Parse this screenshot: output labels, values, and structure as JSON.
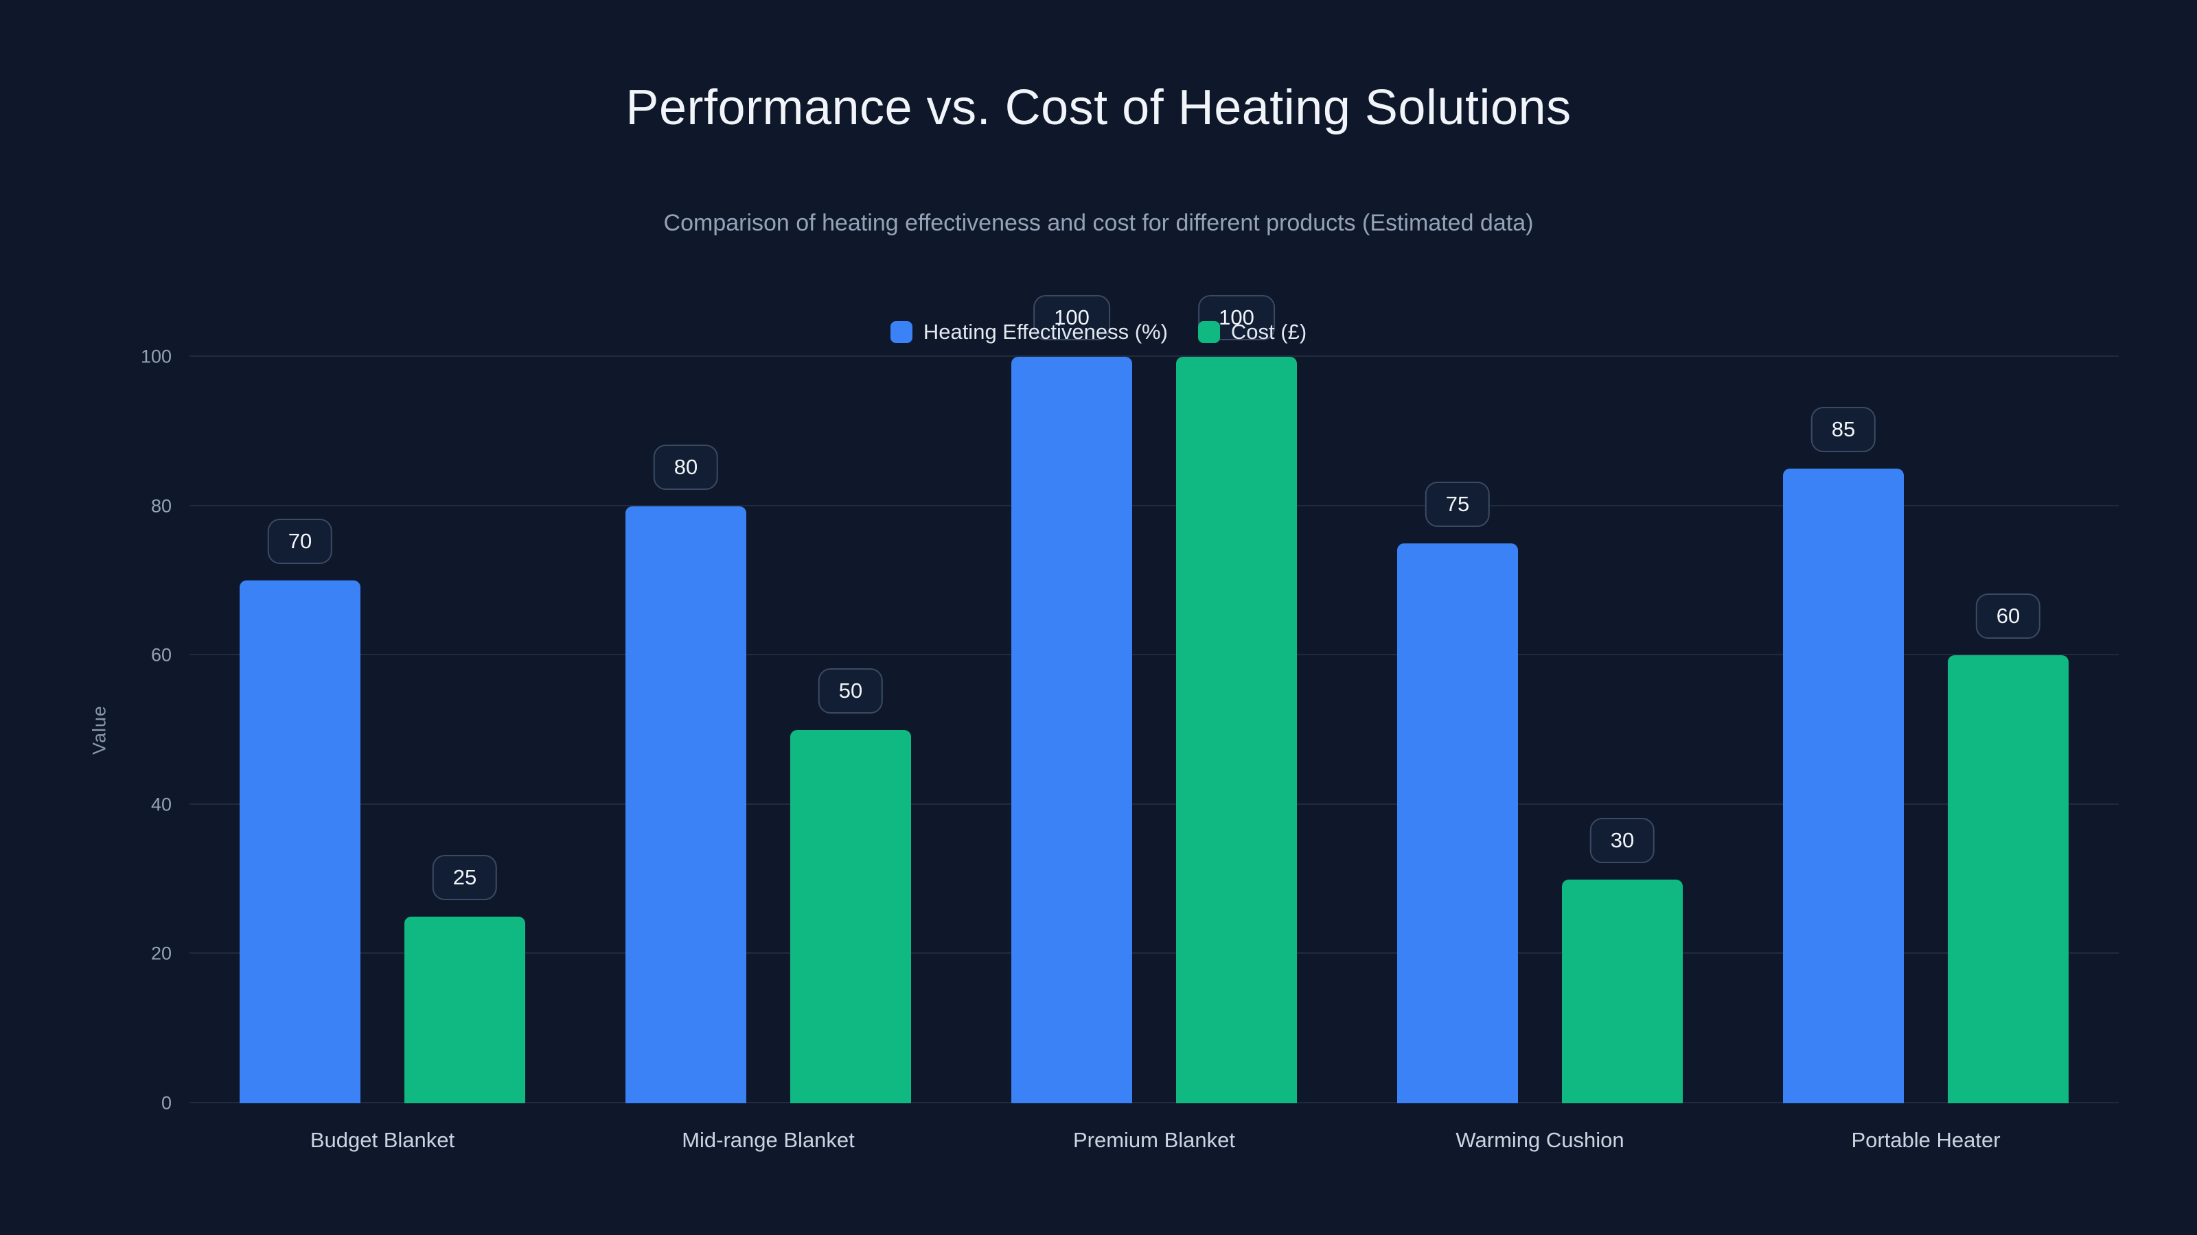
{
  "page": {
    "background": "#0f172a"
  },
  "chart_data": {
    "type": "bar",
    "title": "Performance vs. Cost of Heating Solutions",
    "subtitle": "Comparison of heating effectiveness and cost for different products (Estimated data)",
    "categories": [
      "Budget Blanket",
      "Mid-range Blanket",
      "Premium Blanket",
      "Warming Cushion",
      "Portable Heater"
    ],
    "series": [
      {
        "name": "Heating Effectiveness (%)",
        "color": "#3b82f6",
        "values": [
          70,
          80,
          100,
          75,
          85
        ]
      },
      {
        "name": "Cost (£)",
        "color": "#10b981",
        "values": [
          25,
          50,
          100,
          30,
          60
        ]
      }
    ],
    "ylabel": "Value",
    "xlabel": "",
    "ylim": [
      0,
      100
    ],
    "yticks": [
      0,
      20,
      40,
      60,
      80,
      100
    ],
    "grid": true,
    "legend_position": "top",
    "value_labels": "badges-above-bars"
  }
}
